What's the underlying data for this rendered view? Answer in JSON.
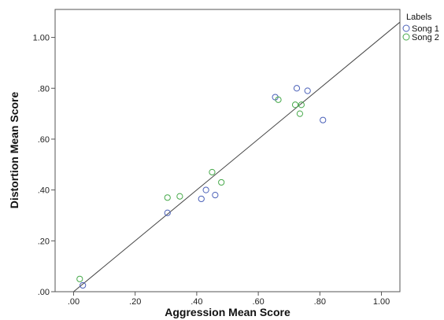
{
  "chart_data": {
    "type": "scatter",
    "xlabel": "Aggression Mean Score",
    "ylabel": "Distortion Mean Score",
    "xlim": [
      -0.06,
      1.06
    ],
    "ylim": [
      0.0,
      1.11
    ],
    "x_ticks": [
      0.0,
      0.2,
      0.4,
      0.6,
      0.8,
      1.0
    ],
    "x_tick_labels": [
      ".00",
      ".20",
      ".40",
      ".60",
      ".80",
      "1.00"
    ],
    "y_ticks": [
      0.0,
      0.2,
      0.4,
      0.6,
      0.8,
      1.0
    ],
    "y_tick_labels": [
      ".00",
      ".20",
      ".40",
      ".60",
      ".80",
      "1.00"
    ],
    "grid": false,
    "legend": {
      "title": "Labels",
      "placement": "top-right"
    },
    "series": [
      {
        "name": "Song 1",
        "color": "#4a60b8",
        "points": [
          [
            0.03,
            0.025
          ],
          [
            0.305,
            0.31
          ],
          [
            0.415,
            0.365
          ],
          [
            0.43,
            0.4
          ],
          [
            0.46,
            0.38
          ],
          [
            0.655,
            0.765
          ],
          [
            0.725,
            0.8
          ],
          [
            0.76,
            0.79
          ],
          [
            0.81,
            0.675
          ]
        ]
      },
      {
        "name": "Song 2",
        "color": "#46a94a",
        "points": [
          [
            0.02,
            0.05
          ],
          [
            0.305,
            0.37
          ],
          [
            0.345,
            0.375
          ],
          [
            0.45,
            0.47
          ],
          [
            0.48,
            0.43
          ],
          [
            0.665,
            0.755
          ],
          [
            0.72,
            0.735
          ],
          [
            0.74,
            0.735
          ],
          [
            0.735,
            0.7
          ]
        ]
      }
    ],
    "reference_line": {
      "points": [
        [
          0.0,
          0.0
        ],
        [
          1.06,
          1.06
        ]
      ]
    }
  }
}
